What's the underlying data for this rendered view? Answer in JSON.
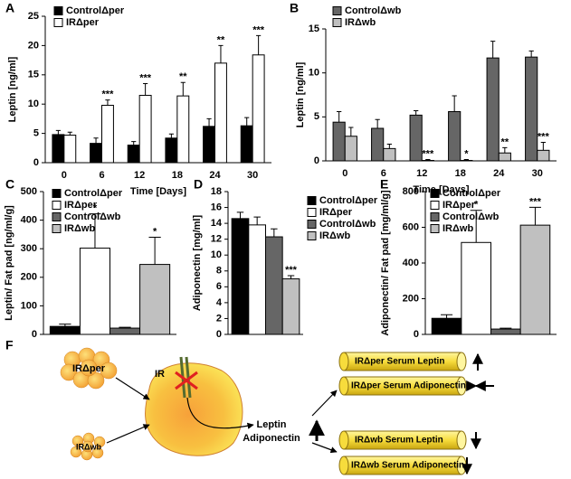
{
  "chart_data": [
    {
      "type": "bar",
      "label": "A",
      "ylabel": "Leptin [ng/ml]",
      "xlabel": "Time [Days]",
      "categories": [
        "0",
        "6",
        "12",
        "18",
        "24",
        "30"
      ],
      "series": [
        {
          "name": "ControlΔper",
          "color": "#000000",
          "values": [
            4.8,
            3.3,
            3.0,
            4.2,
            6.2,
            6.3
          ],
          "errors": [
            0.7,
            0.9,
            0.6,
            0.7,
            1.3,
            1.4
          ],
          "significance": [
            null,
            null,
            null,
            null,
            null,
            null
          ]
        },
        {
          "name": "IRΔper",
          "color": "#ffffff",
          "values": [
            4.7,
            9.8,
            11.5,
            11.4,
            17,
            18.4
          ],
          "errors": [
            0.5,
            0.9,
            2.0,
            2.3,
            3.0,
            3.3
          ],
          "significance": [
            null,
            "***",
            "***",
            "**",
            "**",
            "***"
          ]
        }
      ],
      "ylim": [
        0,
        25
      ],
      "yticks": [
        0,
        5,
        10,
        15,
        20,
        25
      ]
    },
    {
      "type": "bar",
      "label": "B",
      "ylabel": "Leptin [ng/ml]",
      "xlabel": "Time [Days]",
      "categories": [
        "0",
        "6",
        "12",
        "18",
        "24",
        "30"
      ],
      "series": [
        {
          "name": "ControlΔwb",
          "color": "#666666",
          "values": [
            4.4,
            3.7,
            5.2,
            5.6,
            11.7,
            11.8
          ],
          "errors": [
            1.2,
            1.0,
            0.5,
            1.8,
            1.9,
            0.7
          ],
          "significance": [
            null,
            null,
            null,
            null,
            null,
            null
          ]
        },
        {
          "name": "IRΔwb",
          "color": "#c0c0c0",
          "values": [
            2.8,
            1.4,
            0.05,
            0.05,
            0.9,
            1.2
          ],
          "errors": [
            1.0,
            0.5,
            0.1,
            0.1,
            0.6,
            0.9
          ],
          "significance": [
            null,
            null,
            "***",
            "*",
            "**",
            "***"
          ]
        }
      ],
      "ylim": [
        0,
        15
      ],
      "yticks": [
        0,
        5,
        10,
        15
      ]
    },
    {
      "type": "bar",
      "label": "C",
      "ylabel": "Leptin/ Fat pad [ng/ml/g]",
      "categories": [
        null
      ],
      "series": [
        {
          "name": "ControlΔper",
          "color": "#000000",
          "values": [
            28
          ],
          "errors": [
            8
          ],
          "significance": [
            null
          ]
        },
        {
          "name": "IRΔper",
          "color": "#ffffff",
          "values": [
            302
          ],
          "errors": [
            120
          ],
          "significance": [
            "*"
          ]
        },
        {
          "name": "ControlΔwb",
          "color": "#666666",
          "values": [
            22
          ],
          "errors": [
            3
          ],
          "significance": [
            null
          ]
        },
        {
          "name": "IRΔwb",
          "color": "#c0c0c0",
          "values": [
            245
          ],
          "errors": [
            95
          ],
          "significance": [
            "*"
          ]
        }
      ],
      "ylim": [
        0,
        500
      ],
      "yticks": [
        0,
        100,
        200,
        300,
        400,
        500
      ]
    },
    {
      "type": "bar",
      "label": "D",
      "ylabel": "Adiponectin [mg/ml]",
      "categories": [
        null
      ],
      "series": [
        {
          "name": "ControlΔper",
          "color": "#000000",
          "values": [
            14.6
          ],
          "errors": [
            0.8
          ],
          "significance": [
            null
          ]
        },
        {
          "name": "IRΔper",
          "color": "#ffffff",
          "values": [
            13.8
          ],
          "errors": [
            1.0
          ],
          "significance": [
            null
          ]
        },
        {
          "name": "ControlΔwb",
          "color": "#666666",
          "values": [
            12.3
          ],
          "errors": [
            1.0
          ],
          "significance": [
            null
          ]
        },
        {
          "name": "IRΔwb",
          "color": "#c0c0c0",
          "values": [
            7.0
          ],
          "errors": [
            0.4
          ],
          "significance": [
            "***"
          ]
        }
      ],
      "ylim": [
        0,
        18
      ],
      "yticks": [
        0,
        2,
        4,
        6,
        8,
        10,
        12,
        14,
        16,
        18
      ]
    },
    {
      "type": "bar",
      "label": "E",
      "ylabel": "Adiponectin/ Fat pad [mg/ml/g]",
      "categories": [
        null
      ],
      "series": [
        {
          "name": "ControlΔper",
          "color": "#000000",
          "values": [
            90
          ],
          "errors": [
            20
          ],
          "significance": [
            null
          ]
        },
        {
          "name": "IRΔper",
          "color": "#ffffff",
          "values": [
            515
          ],
          "errors": [
            180
          ],
          "significance": [
            "*"
          ]
        },
        {
          "name": "ControlΔwb",
          "color": "#666666",
          "values": [
            30
          ],
          "errors": [
            5
          ],
          "significance": [
            null
          ]
        },
        {
          "name": "IRΔwb",
          "color": "#c0c0c0",
          "values": [
            612
          ],
          "errors": [
            100
          ],
          "significance": [
            "***"
          ]
        }
      ],
      "ylim": [
        0,
        800
      ],
      "yticks": [
        0,
        200,
        400,
        600,
        800
      ]
    }
  ],
  "diagram": {
    "label": "F",
    "tissue_per": "IRΔper",
    "tissue_wb": "IRΔwb",
    "receptor": "IR",
    "hormones": [
      "Leptin",
      "Adiponectin"
    ],
    "outcomes": [
      "IRΔper Serum Leptin",
      "IRΔper Serum Adiponectin",
      "IRΔwb Serum Leptin",
      "IRΔwb Serum Adiponectin"
    ]
  }
}
